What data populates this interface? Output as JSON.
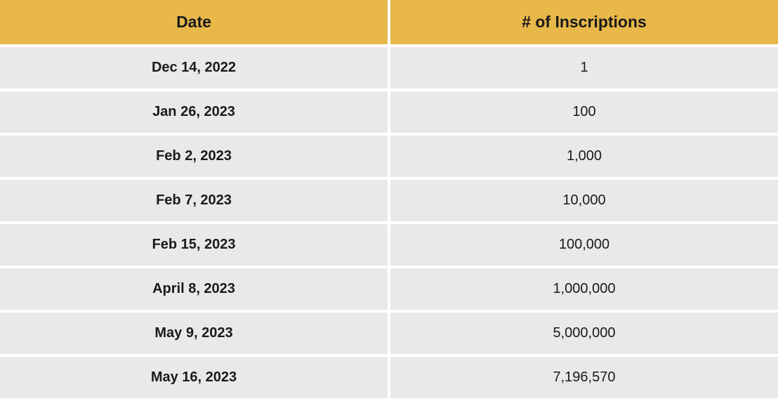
{
  "table": {
    "type": "table",
    "columns": [
      {
        "label": "Date",
        "align": "center",
        "font_weight": 700
      },
      {
        "label": "# of Inscriptions",
        "align": "center",
        "font_weight": 400
      }
    ],
    "rows": [
      {
        "date": "Dec 14, 2022",
        "value": "1"
      },
      {
        "date": "Jan 26, 2023",
        "value": "100"
      },
      {
        "date": "Feb 2, 2023",
        "value": "1,000"
      },
      {
        "date": "Feb 7, 2023",
        "value": "10,000"
      },
      {
        "date": "Feb 15, 2023",
        "value": "100,000"
      },
      {
        "date": "April 8, 2023",
        "value": "1,000,000"
      },
      {
        "date": "May 9, 2023",
        "value": "5,000,000"
      },
      {
        "date": "May 16, 2023",
        "value": "7,196,570"
      }
    ],
    "styling": {
      "header_bg_color": "#e8b84a",
      "header_text_color": "#1a1a1a",
      "header_font_size": 23,
      "header_font_weight": 800,
      "row_bg_color": "#e9e9e9",
      "row_text_color": "#1a1a1a",
      "row_font_size": 20,
      "gap_color": "#ffffff",
      "gap_width": 4,
      "row_padding_vertical": 18
    }
  }
}
